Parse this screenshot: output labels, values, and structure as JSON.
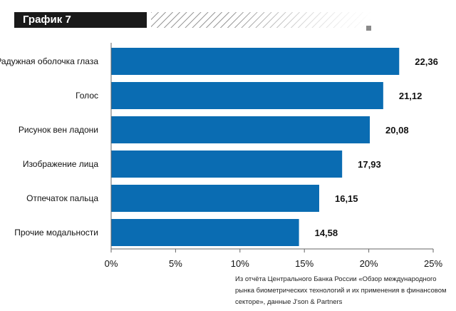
{
  "header": {
    "title": "График 7"
  },
  "source_note": "Из отчёта Центрального Банка России «Обзор международного рынка биометрических технологий и их применения в финансовом секторе», данные J'son & Partners",
  "colors": {
    "bar": "#0a6cb2",
    "axis": "#666666",
    "title_bg": "#1a1a1a"
  },
  "chart_data": {
    "type": "bar",
    "orientation": "horizontal",
    "title": "",
    "xlabel": "",
    "ylabel": "",
    "categories": [
      "Радужная оболочка глаза",
      "Голос",
      "Рисунок вен ладони",
      "Изображение лица",
      "Отпечаток пальца",
      "Прочие модальности"
    ],
    "values": [
      22.36,
      21.12,
      20.08,
      17.93,
      16.15,
      14.58
    ],
    "data_labels": [
      "22,36",
      "21,12",
      "20,08",
      "17,93",
      "16,15",
      "14,58"
    ],
    "xlim": [
      0,
      25
    ],
    "xticks": [
      0,
      5,
      10,
      15,
      20,
      25
    ],
    "xtick_labels": [
      "0%",
      "5%",
      "10%",
      "15%",
      "20%",
      "25%"
    ],
    "grid": false,
    "legend": "none"
  }
}
